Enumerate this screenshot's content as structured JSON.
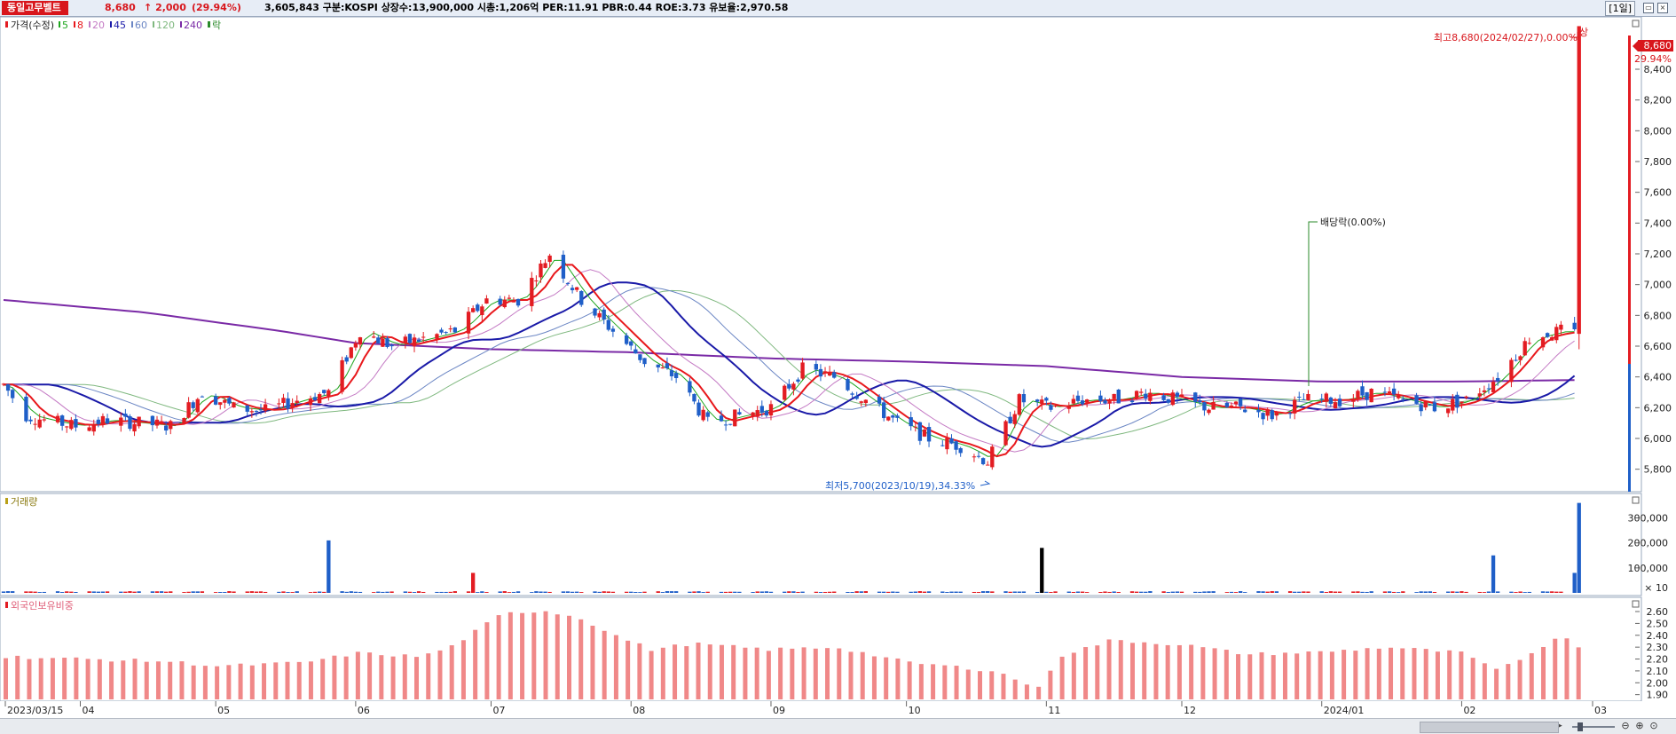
{
  "header": {
    "stock_name": "동일고무벨트",
    "price": "8,680",
    "change_arrow": "↑",
    "change": "2,000",
    "change_pct": "(29.94%)",
    "meta": "3,605,843  구분:KOSPI  상장수:13,900,000  시총:1,206억  PER:11.91  PBR:0.44  ROE:3.73  유보율:2,970.58",
    "period": "[1일]"
  },
  "legend": {
    "price_label": "가격(수정)",
    "ma": [
      {
        "label": "5",
        "color": "#1ea61e"
      },
      {
        "label": "8",
        "color": "#e8181c"
      },
      {
        "label": "20",
        "color": "#c47ac4"
      },
      {
        "label": "45",
        "color": "#1a1aa8"
      },
      {
        "label": "60",
        "color": "#6b86c4"
      },
      {
        "label": "120",
        "color": "#7fb87f"
      },
      {
        "label": "240",
        "color": "#7a2aa6"
      }
    ],
    "ex_div_label": "락"
  },
  "volume_panel": {
    "title": "거래량",
    "unit_note": "× 10"
  },
  "foreign_panel": {
    "title": "외국인보유비중"
  },
  "colors": {
    "up": "#e31c22",
    "down": "#1f5fc8",
    "foreign_bar": "#f08888",
    "ma240": "#7a2aa6",
    "ma45": "#1a1aa8",
    "ma8": "#e8181c"
  },
  "chart_data": [
    {
      "type": "candlestick",
      "title": "",
      "ylim": [
        5700,
        8700
      ],
      "y_ticks": [
        "5,800",
        "6,000",
        "6,200",
        "6,400",
        "6,600",
        "6,800",
        "7,000",
        "7,200",
        "7,400",
        "7,600",
        "7,800",
        "8,000",
        "8,200",
        "8,400"
      ],
      "last_price_label": "8,680",
      "last_pct_label": "29.94%",
      "annotations": {
        "high": "최고8,680(2024/02/27),0.00%",
        "high_marker": "상",
        "low": "최저5,700(2023/10/19),34.33%",
        "dividend": "배당락(0.00%)"
      },
      "x_tick_labels": [
        "2023/03/15",
        "04",
        "05",
        "06",
        "07",
        "08",
        "09",
        "10",
        "11",
        "12",
        "2024/01",
        "02",
        "03"
      ],
      "x_tick_dates": [
        "2023-03-15",
        "2023-04-01",
        "2023-05-01",
        "2023-06-01",
        "2023-07-01",
        "2023-08-01",
        "2023-09-01",
        "2023-10-01",
        "2023-11-01",
        "2023-12-01",
        "2024-01-01",
        "2024-02-01",
        "2024-03-01"
      ],
      "close_series": [
        [
          "2023-03-15",
          6350
        ],
        [
          "2023-03-20",
          6150
        ],
        [
          "2023-03-24",
          6120
        ],
        [
          "2023-03-31",
          6080
        ],
        [
          "2023-04-07",
          6120
        ],
        [
          "2023-04-14",
          6100
        ],
        [
          "2023-04-21",
          6080
        ],
        [
          "2023-04-28",
          6300
        ],
        [
          "2023-05-05",
          6200
        ],
        [
          "2023-05-12",
          6180
        ],
        [
          "2023-05-19",
          6250
        ],
        [
          "2023-05-26",
          6300
        ],
        [
          "2023-06-02",
          6700
        ],
        [
          "2023-06-09",
          6600
        ],
        [
          "2023-06-16",
          6650
        ],
        [
          "2023-06-23",
          6700
        ],
        [
          "2023-06-30",
          6900
        ],
        [
          "2023-07-07",
          6900
        ],
        [
          "2023-07-14",
          7200
        ],
        [
          "2023-07-21",
          6900
        ],
        [
          "2023-07-28",
          6700
        ],
        [
          "2023-08-04",
          6500
        ],
        [
          "2023-08-11",
          6400
        ],
        [
          "2023-08-18",
          6100
        ],
        [
          "2023-08-25",
          6150
        ],
        [
          "2023-09-01",
          6200
        ],
        [
          "2023-09-08",
          6450
        ],
        [
          "2023-09-15",
          6400
        ],
        [
          "2023-09-22",
          6250
        ],
        [
          "2023-09-29",
          6100
        ],
        [
          "2023-10-06",
          6000
        ],
        [
          "2023-10-13",
          5950
        ],
        [
          "2023-10-19",
          5850
        ],
        [
          "2023-10-26",
          6250
        ],
        [
          "2023-11-02",
          6200
        ],
        [
          "2023-11-09",
          6250
        ],
        [
          "2023-11-16",
          6250
        ],
        [
          "2023-11-23",
          6300
        ],
        [
          "2023-11-30",
          6250
        ],
        [
          "2023-12-07",
          6200
        ],
        [
          "2023-12-14",
          6200
        ],
        [
          "2023-12-21",
          6150
        ],
        [
          "2023-12-28",
          6250
        ],
        [
          "2024-01-05",
          6250
        ],
        [
          "2024-01-12",
          6300
        ],
        [
          "2024-01-19",
          6250
        ],
        [
          "2024-01-26",
          6200
        ],
        [
          "2024-02-02",
          6250
        ],
        [
          "2024-02-09",
          6400
        ],
        [
          "2024-02-16",
          6650
        ],
        [
          "2024-02-23",
          6700
        ],
        [
          "2024-02-26",
          6680
        ],
        [
          "2024-02-27",
          8680
        ]
      ],
      "ma240_series": [
        [
          "2023-03-15",
          6900
        ],
        [
          "2023-04-15",
          6820
        ],
        [
          "2023-05-15",
          6700
        ],
        [
          "2023-06-01",
          6620
        ],
        [
          "2023-07-01",
          6580
        ],
        [
          "2023-08-01",
          6560
        ],
        [
          "2023-09-01",
          6520
        ],
        [
          "2023-10-01",
          6500
        ],
        [
          "2023-11-01",
          6470
        ],
        [
          "2023-12-01",
          6400
        ],
        [
          "2024-01-01",
          6370
        ],
        [
          "2024-02-01",
          6370
        ],
        [
          "2024-02-27",
          6380
        ]
      ]
    },
    {
      "type": "bar",
      "title": "",
      "y_ticks": [
        "100,000",
        "200,000",
        "300,000"
      ],
      "spikes": [
        [
          "2023-05-26",
          210000
        ],
        [
          "2023-06-27",
          80000
        ],
        [
          "2023-10-31",
          180000
        ],
        [
          "2024-02-08",
          150000
        ],
        [
          "2024-02-26",
          80000
        ],
        [
          "2024-02-27",
          360000
        ]
      ]
    },
    {
      "type": "bar",
      "title": "",
      "y_ticks": [
        "1.90",
        "2.00",
        "2.10",
        "2.20",
        "2.30",
        "2.40",
        "2.50",
        "2.60"
      ],
      "ylim": [
        1.86,
        2.66
      ],
      "foreign_ratio": [
        [
          "2023-03-15",
          2.22
        ],
        [
          "2023-04-01",
          2.2
        ],
        [
          "2023-04-20",
          2.18
        ],
        [
          "2023-05-01",
          2.14
        ],
        [
          "2023-05-20",
          2.17
        ],
        [
          "2023-06-01",
          2.25
        ],
        [
          "2023-06-15",
          2.22
        ],
        [
          "2023-06-22",
          2.31
        ],
        [
          "2023-07-03",
          2.58
        ],
        [
          "2023-07-12",
          2.61
        ],
        [
          "2023-07-20",
          2.55
        ],
        [
          "2023-07-28",
          2.4
        ],
        [
          "2023-08-05",
          2.28
        ],
        [
          "2023-08-14",
          2.33
        ],
        [
          "2023-08-31",
          2.28
        ],
        [
          "2023-09-15",
          2.3
        ],
        [
          "2023-10-01",
          2.17
        ],
        [
          "2023-10-10",
          2.14
        ],
        [
          "2023-10-20",
          2.1
        ],
        [
          "2023-10-30",
          1.95
        ],
        [
          "2023-11-03",
          2.22
        ],
        [
          "2023-11-15",
          2.36
        ],
        [
          "2023-12-01",
          2.32
        ],
        [
          "2023-12-15",
          2.24
        ],
        [
          "2024-01-01",
          2.26
        ],
        [
          "2024-01-15",
          2.3
        ],
        [
          "2024-02-01",
          2.25
        ],
        [
          "2024-02-08",
          2.1
        ],
        [
          "2024-02-16",
          2.25
        ],
        [
          "2024-02-22",
          2.4
        ],
        [
          "2024-02-27",
          2.3
        ]
      ]
    }
  ]
}
